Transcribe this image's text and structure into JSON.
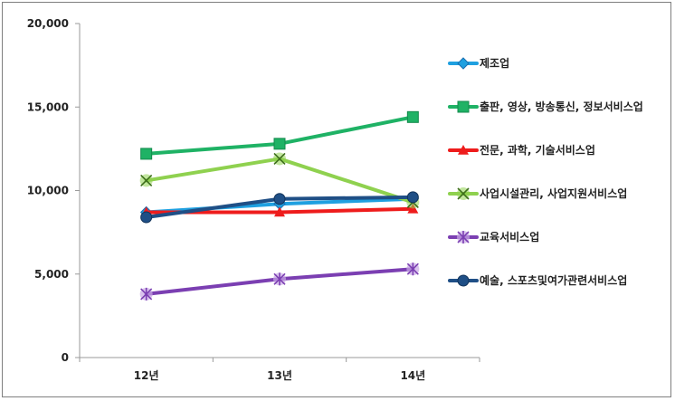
{
  "chart_data": {
    "type": "line",
    "title": "",
    "xlabel": "",
    "ylabel": "",
    "categories": [
      "12년",
      "13년",
      "14년"
    ],
    "ylim": [
      0,
      20000
    ],
    "yticks": [
      0,
      5000,
      10000,
      15000,
      20000
    ],
    "ytick_labels": [
      "0",
      "5,000",
      "10,000",
      "15,000",
      "20,000"
    ],
    "legend_position": "right",
    "grid": false,
    "series": [
      {
        "name": "제조업",
        "values": [
          8700,
          9200,
          9500
        ],
        "color": "#1fa0e0",
        "marker": "diamond"
      },
      {
        "name": "출판, 영상, 방송통신, 정보서비스업",
        "values": [
          12200,
          12800,
          14400
        ],
        "color": "#1fb265",
        "marker": "square"
      },
      {
        "name": "전문, 과학, 기술서비스업",
        "values": [
          8700,
          8700,
          8900
        ],
        "color": "#ee1c1c",
        "marker": "triangle"
      },
      {
        "name": "사업시설관리, 사업지원서비스업",
        "values": [
          10600,
          11900,
          9300
        ],
        "color": "#8fd14f",
        "marker": "x"
      },
      {
        "name": "교육서비스업",
        "values": [
          3800,
          4700,
          5300
        ],
        "color": "#7b3fb2",
        "marker": "star"
      },
      {
        "name": "예술, 스포츠및여가관련서비스업",
        "values": [
          8400,
          9500,
          9600
        ],
        "color": "#1f4f86",
        "marker": "circle"
      }
    ]
  }
}
